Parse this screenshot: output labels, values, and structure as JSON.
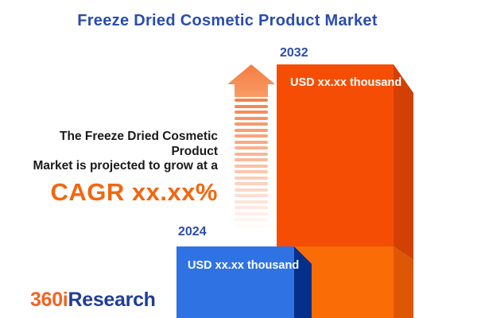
{
  "header": {
    "title": "Freeze Dried Cosmetic Product Market"
  },
  "promo": {
    "line1": "The Freeze Dried Cosmetic Product",
    "line2": "Market is projected to grow at a",
    "cagr": "CAGR xx.xx%"
  },
  "chart": {
    "bars": [
      {
        "year": "2024",
        "value_label": "USD xx.xx thousand"
      },
      {
        "year": "2032",
        "value_label": "USD xx.xx thousand"
      }
    ]
  },
  "chart_data": {
    "type": "bar",
    "title": "Freeze Dried Cosmetic Product Market",
    "categories": [
      "2024",
      "2032"
    ],
    "values": [
      "xx.xx",
      "xx.xx"
    ],
    "value_labels": [
      "USD xx.xx thousand",
      "USD xx.xx thousand"
    ],
    "unit": "USD thousand",
    "annotation": "The Freeze Dried Cosmetic Product Market is projected to grow at a CAGR xx.xx%",
    "legend": false,
    "axes": false,
    "bar_colors": {
      "2024": "#2F72E4",
      "2032": "#F54E04"
    }
  },
  "logo": {
    "prefix": "360i",
    "suffix": "Research"
  },
  "colors": {
    "title_blue": "#2A4CAD",
    "cagr_orange": "#F4660E",
    "arrow_orange": "#F5824B",
    "bar_2024_front": "#2F72E4",
    "bar_2024_side": "#04308C",
    "bar_2032_front_upper": "#F54E04",
    "bar_2032_front_lower": "#FA6D06",
    "bar_2032_side_upper": "#D34004",
    "bar_2032_side_lower": "#DD5705",
    "value_text": "#FFFFFF",
    "body_text": "#1A1A1A",
    "logo_orange": "#F26322",
    "logo_blue": "#1F3D99"
  }
}
